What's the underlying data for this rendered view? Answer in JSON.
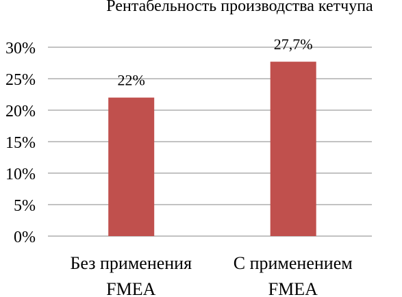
{
  "chart_data": {
    "type": "bar",
    "title": "Рентабельность производства кетчупа",
    "categories": [
      [
        "Без применения",
        "FMEA"
      ],
      [
        "С применением",
        "FMEA"
      ]
    ],
    "values": [
      0.22,
      0.277
    ],
    "data_labels": [
      "22%",
      "27,7%"
    ],
    "ylim": [
      0,
      0.3
    ],
    "yticks": [
      {
        "value": 0.0,
        "label": "0%"
      },
      {
        "value": 0.05,
        "label": "5%"
      },
      {
        "value": 0.1,
        "label": "10%"
      },
      {
        "value": 0.15,
        "label": "15%"
      },
      {
        "value": 0.2,
        "label": "20%"
      },
      {
        "value": 0.25,
        "label": "25%"
      },
      {
        "value": 0.3,
        "label": "30%"
      }
    ],
    "grid": true,
    "bar_color": "#C0504D",
    "legend": "none"
  }
}
